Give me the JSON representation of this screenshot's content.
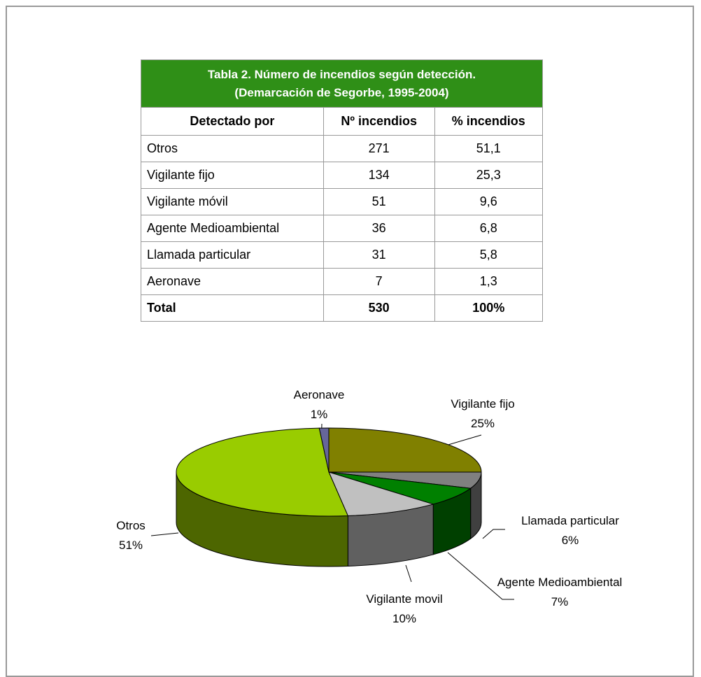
{
  "table": {
    "title": [
      "Tabla 2. Número de incendios según detección.",
      "(Demarcación de Segorbe, 1995-2004)"
    ],
    "header": [
      "Detectado por",
      "Nº incendios",
      "% incendios"
    ],
    "rows": [
      [
        "Otros",
        "271",
        "51,1"
      ],
      [
        "Vigilante fijo",
        "134",
        "25,3"
      ],
      [
        "Vigilante móvil",
        "51",
        "9,6"
      ],
      [
        "Agente Medioambiental",
        "36",
        "6,8"
      ],
      [
        "Llamada particular",
        "31",
        "5,8"
      ],
      [
        "Aeronave",
        "7",
        "1,3"
      ],
      [
        "Total",
        "530",
        "100%"
      ]
    ]
  },
  "chart_data": {
    "type": "pie3d",
    "categories": [
      "Vigilante fijo",
      "Llamada particular",
      "Agente Medioambiental",
      "Vigilante movil",
      "Otros",
      "Aeronave"
    ],
    "values": [
      25,
      6,
      7,
      10,
      51,
      1
    ],
    "value_labels": [
      "25%",
      "6%",
      "7%",
      "10%",
      "51%",
      "1%"
    ],
    "colors": [
      "#808000",
      "#808080",
      "#008000",
      "#c0c0c0",
      "#99cc00",
      "#666699"
    ]
  }
}
